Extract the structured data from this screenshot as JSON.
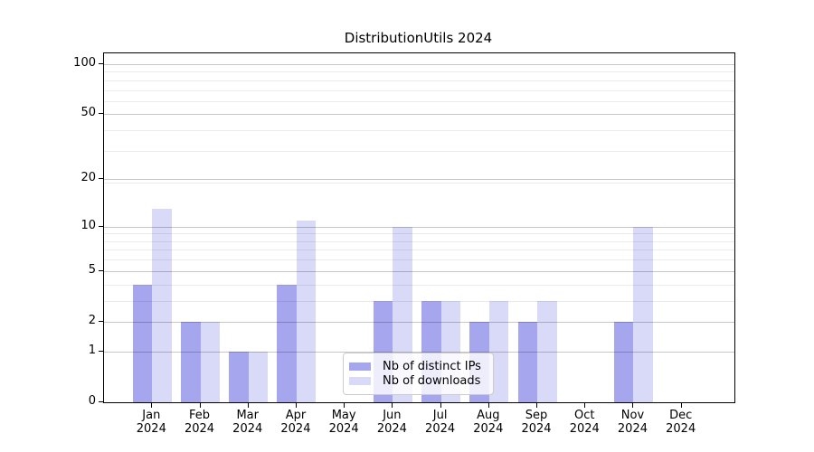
{
  "title": "DistributionUtils 2024",
  "chart_data": {
    "type": "bar",
    "title": "DistributionUtils 2024",
    "categories": [
      "Jan 2024",
      "Feb 2024",
      "Mar 2024",
      "Apr 2024",
      "May 2024",
      "Jun 2024",
      "Jul 2024",
      "Aug 2024",
      "Sep 2024",
      "Oct 2024",
      "Nov 2024",
      "Dec 2024"
    ],
    "series": [
      {
        "name": "Nb of distinct IPs",
        "color": "#a6a6ef",
        "values": [
          4,
          2,
          1,
          4,
          0,
          3,
          3,
          2,
          2,
          0,
          2,
          0
        ]
      },
      {
        "name": "Nb of downloads",
        "color": "#d9d9f8",
        "values": [
          13,
          2,
          1,
          11,
          0,
          10,
          3,
          3,
          3,
          0,
          10,
          0
        ]
      }
    ],
    "yscale": "log1p",
    "ylim": [
      0,
      116
    ],
    "yticks": [
      0,
      1,
      2,
      5,
      10,
      20,
      50,
      100
    ],
    "minor_gridlines": [
      3,
      4,
      6,
      7,
      8,
      9,
      19,
      30,
      40,
      60,
      70,
      80,
      90
    ],
    "grid": "on",
    "legend_position": "lower center"
  }
}
